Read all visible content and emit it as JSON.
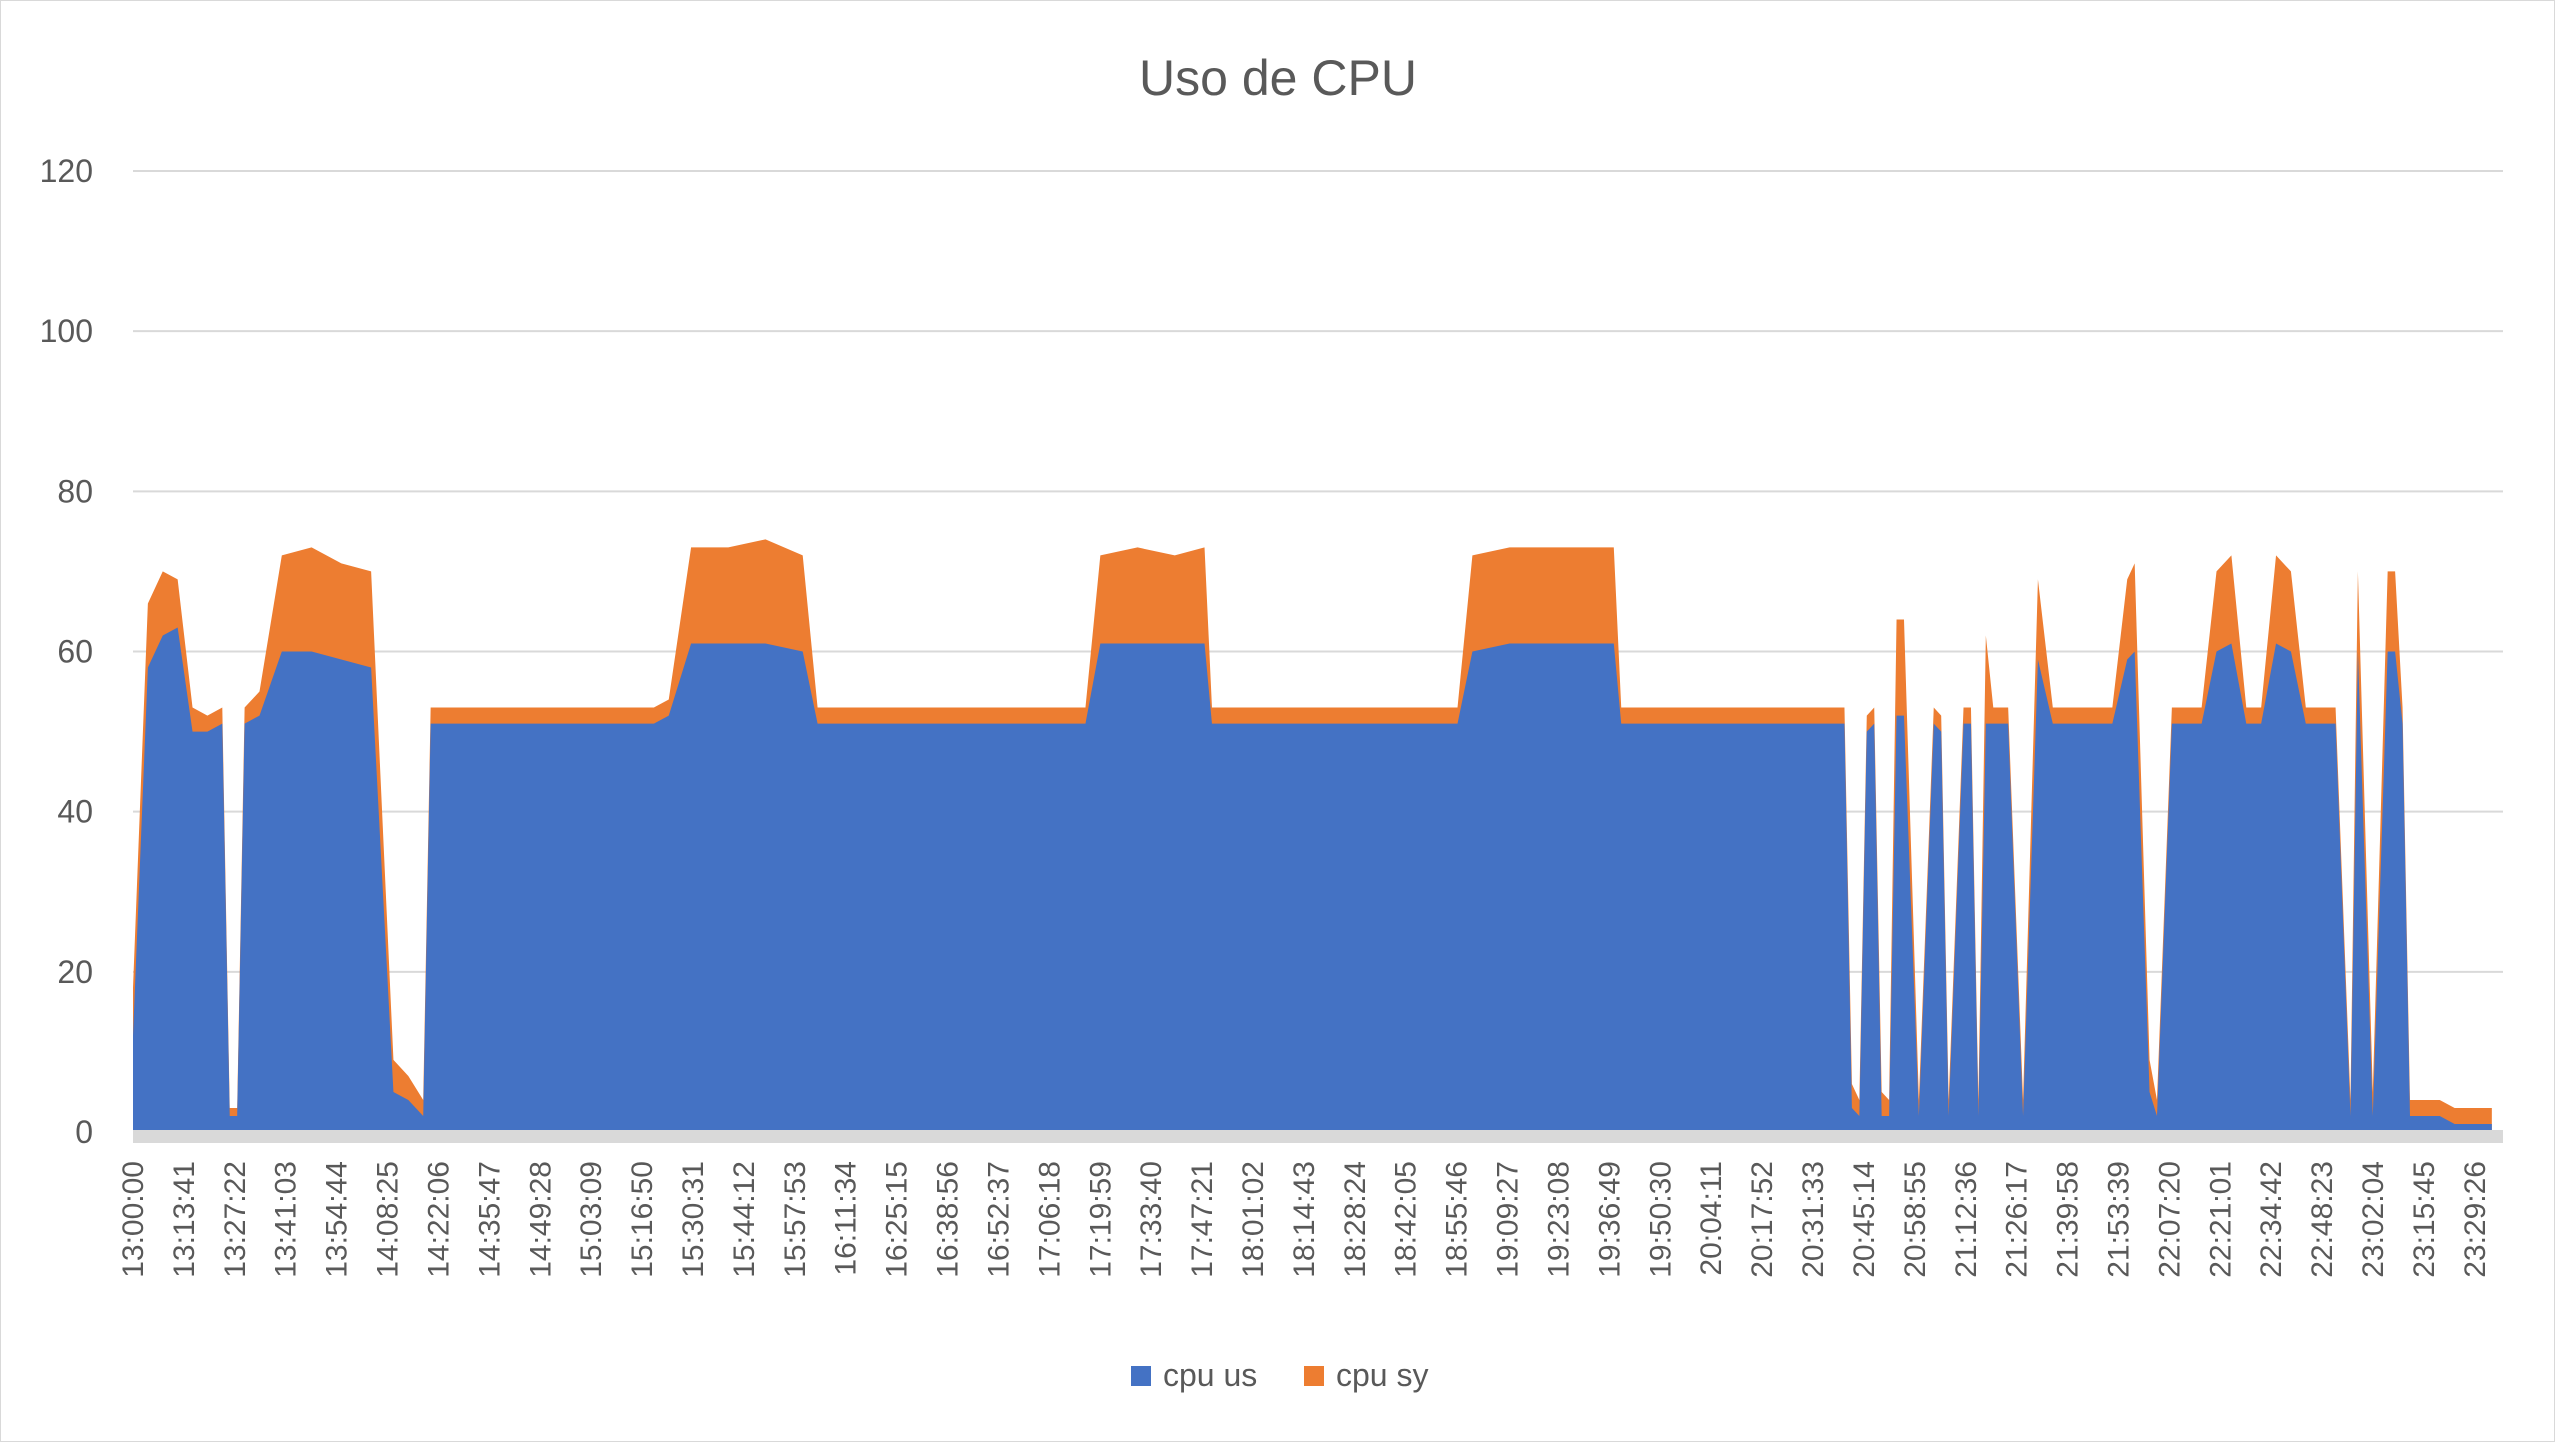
{
  "chart_data": {
    "type": "area",
    "stacked": true,
    "title": "Uso de CPU",
    "xlabel": "",
    "ylabel": "",
    "ylim": [
      0,
      120
    ],
    "yticks": [
      0,
      20,
      40,
      60,
      80,
      100,
      120
    ],
    "grid": "horizontal",
    "legend_position": "bottom",
    "x_tick_labels": [
      "13:00:00",
      "13:13:41",
      "13:27:22",
      "13:41:03",
      "13:54:44",
      "14:08:25",
      "14:22:06",
      "14:35:47",
      "14:49:28",
      "15:03:09",
      "15:16:50",
      "15:30:31",
      "15:44:12",
      "15:57:53",
      "16:11:34",
      "16:25:15",
      "16:38:56",
      "16:52:37",
      "17:06:18",
      "17:19:59",
      "17:33:40",
      "17:47:21",
      "18:01:02",
      "18:14:43",
      "18:28:24",
      "18:42:05",
      "18:55:46",
      "19:09:27",
      "19:23:08",
      "19:36:49",
      "19:50:30",
      "20:04:11",
      "20:17:52",
      "20:31:33",
      "20:45:14",
      "20:58:55",
      "21:12:36",
      "21:26:17",
      "21:39:58",
      "21:53:39",
      "22:07:20",
      "22:21:01",
      "22:34:42",
      "22:48:23",
      "23:02:04",
      "23:15:45",
      "23:29:26"
    ],
    "x": [
      "13:00:00",
      "13:04:00",
      "13:08:00",
      "13:12:00",
      "13:16:00",
      "13:20:00",
      "13:24:00",
      "13:26:00",
      "13:28:00",
      "13:30:00",
      "13:34:00",
      "13:40:00",
      "13:48:00",
      "13:56:00",
      "14:04:00",
      "14:10:00",
      "14:14:00",
      "14:18:00",
      "14:20:00",
      "14:22:00",
      "14:24:00",
      "14:30:00",
      "14:40:00",
      "14:50:00",
      "15:00:00",
      "15:10:00",
      "15:20:00",
      "15:24:00",
      "15:30:00",
      "15:40:00",
      "15:50:00",
      "16:00:00",
      "16:04:00",
      "16:10:00",
      "16:20:00",
      "16:30:00",
      "16:40:00",
      "16:50:00",
      "17:00:00",
      "17:10:00",
      "17:16:00",
      "17:20:00",
      "17:30:00",
      "17:40:00",
      "17:48:00",
      "17:50:00",
      "18:00:00",
      "18:10:00",
      "18:20:00",
      "18:30:00",
      "18:40:00",
      "18:50:00",
      "18:56:00",
      "19:00:00",
      "19:10:00",
      "19:20:00",
      "19:30:00",
      "19:38:00",
      "19:40:00",
      "19:50:00",
      "20:00:00",
      "20:10:00",
      "20:20:00",
      "20:30:00",
      "20:36:00",
      "20:40:00",
      "20:42:00",
      "20:44:00",
      "20:46:00",
      "20:48:00",
      "20:50:00",
      "20:52:00",
      "20:54:00",
      "20:56:00",
      "21:00:00",
      "21:04:00",
      "21:06:00",
      "21:08:00",
      "21:12:00",
      "21:14:00",
      "21:16:00",
      "21:18:00",
      "21:20:00",
      "21:24:00",
      "21:28:00",
      "21:32:00",
      "21:36:00",
      "21:40:00",
      "21:44:00",
      "21:48:00",
      "21:52:00",
      "21:56:00",
      "21:58:00",
      "22:02:00",
      "22:04:00",
      "22:08:00",
      "22:12:00",
      "22:16:00",
      "22:20:00",
      "22:24:00",
      "22:28:00",
      "22:32:00",
      "22:36:00",
      "22:40:00",
      "22:44:00",
      "22:48:00",
      "22:52:00",
      "22:56:00",
      "22:58:00",
      "23:02:00",
      "23:06:00",
      "23:08:00",
      "23:10:00",
      "23:12:00",
      "23:16:00",
      "23:20:00",
      "23:24:00",
      "23:28:00",
      "23:32:00",
      "23:34:00"
    ],
    "series": [
      {
        "name": "cpu us",
        "color": "#4472c4",
        "values": [
          12,
          58,
          62,
          63,
          50,
          50,
          51,
          2,
          2,
          51,
          52,
          60,
          60,
          59,
          58,
          5,
          4,
          2,
          51,
          51,
          51,
          51,
          51,
          51,
          51,
          51,
          51,
          52,
          61,
          61,
          61,
          60,
          51,
          51,
          51,
          51,
          51,
          51,
          51,
          51,
          51,
          61,
          61,
          61,
          61,
          51,
          51,
          51,
          51,
          51,
          51,
          51,
          51,
          60,
          61,
          61,
          61,
          61,
          51,
          51,
          51,
          51,
          51,
          51,
          51,
          51,
          3,
          2,
          50,
          51,
          2,
          2,
          52,
          52,
          2,
          51,
          50,
          2,
          51,
          51,
          2,
          51,
          51,
          51,
          2,
          59,
          51,
          51,
          51,
          51,
          51,
          59,
          60,
          5,
          2,
          51,
          51,
          51,
          60,
          61,
          51,
          51,
          61,
          60,
          51,
          51,
          51,
          2,
          60,
          2,
          60,
          60,
          51,
          2,
          2,
          2,
          1,
          1,
          1,
          1
        ]
      },
      {
        "name": "cpu sy",
        "color": "#ed7d31",
        "values": [
          6,
          8,
          8,
          6,
          3,
          2,
          2,
          1,
          1,
          2,
          3,
          12,
          13,
          12,
          12,
          4,
          3,
          2,
          2,
          2,
          2,
          2,
          2,
          2,
          2,
          2,
          2,
          2,
          12,
          12,
          13,
          12,
          2,
          2,
          2,
          2,
          2,
          2,
          2,
          2,
          2,
          11,
          12,
          11,
          12,
          2,
          2,
          2,
          2,
          2,
          2,
          2,
          2,
          12,
          12,
          12,
          12,
          12,
          2,
          2,
          2,
          2,
          2,
          2,
          2,
          2,
          3,
          2,
          2,
          2,
          3,
          2,
          12,
          12,
          2,
          2,
          2,
          2,
          2,
          2,
          2,
          11,
          2,
          2,
          2,
          10,
          2,
          2,
          2,
          2,
          2,
          10,
          11,
          4,
          2,
          2,
          2,
          2,
          10,
          11,
          2,
          2,
          11,
          10,
          2,
          2,
          2,
          2,
          10,
          3,
          10,
          10,
          2,
          2,
          2,
          2,
          2,
          2,
          2,
          2
        ]
      }
    ]
  }
}
